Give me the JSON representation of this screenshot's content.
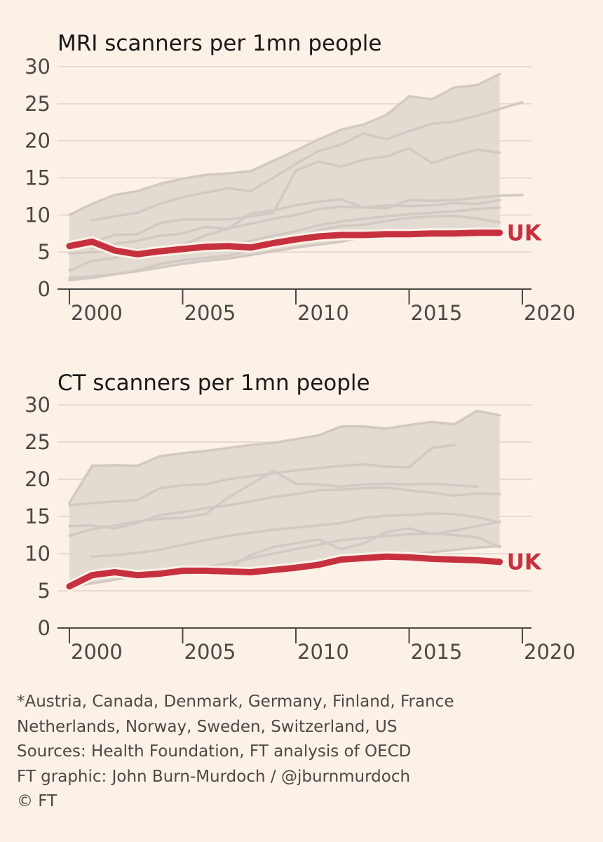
{
  "chart_data": [
    {
      "type": "line",
      "title": "MRI scanners per 1mn people",
      "xlabel": "",
      "ylabel": "",
      "xlim": [
        1999,
        2021
      ],
      "ylim": [
        0,
        30
      ],
      "yticks": [
        0,
        5,
        10,
        15,
        20,
        25,
        30
      ],
      "xticks": [
        2000,
        2005,
        2010,
        2015,
        2020
      ],
      "x": [
        2000,
        2001,
        2002,
        2003,
        2004,
        2005,
        2006,
        2007,
        2008,
        2009,
        2010,
        2011,
        2012,
        2013,
        2014,
        2015,
        2016,
        2017,
        2018,
        2019
      ],
      "peer_range_max": [
        10,
        11.5,
        12.7,
        13.2,
        14.2,
        14.9,
        15.4,
        15.6,
        15.9,
        17.3,
        18.7,
        20.2,
        21.5,
        22.2,
        23.5,
        26,
        25.6,
        27.2,
        27.5,
        29
      ],
      "peer_range_min": [
        1.2,
        1.5,
        2,
        2.4,
        2.9,
        3.4,
        3.8,
        4.1,
        4.6,
        5.1,
        5.6,
        6,
        6.4,
        7,
        7.3,
        7.5,
        7.8,
        8,
        8.1,
        8.2
      ],
      "peer_series": [
        {
          "start": 2001,
          "values": [
            9.3,
            9.8,
            10.3,
            11.5,
            12.4,
            13,
            13.6,
            13.2,
            15,
            16.9,
            18.6,
            19.5,
            21,
            20.2,
            21.3,
            22.3,
            22.6,
            23.4,
            24.3,
            25.2
          ]
        },
        {
          "start": 2000,
          "values": [
            5.3,
            6.3,
            7.3,
            7.4,
            8.9,
            9.4,
            9.4,
            9.4,
            9.8,
            10.3,
            16,
            17.2,
            16.5,
            17.5,
            17.9,
            19,
            17,
            18,
            18.8,
            18.4
          ]
        },
        {
          "start": 2001,
          "values": [
            5.5,
            6.1,
            6.5,
            7.2,
            7.5,
            8.4,
            8.1,
            10.2,
            10.6,
            11.3,
            11.8,
            12.1,
            11,
            10.9,
            12,
            11.9,
            12,
            12.3,
            12.6,
            12.7
          ]
        },
        {
          "start": 2000,
          "values": [
            2.5,
            3.8,
            4.2,
            5,
            5.5,
            6,
            7.2,
            8.2,
            8.8,
            9.5,
            10,
            10.8,
            11.1,
            11,
            11.3,
            11.2,
            11.3,
            11.6,
            11.5,
            12
          ]
        },
        {
          "start": 2000,
          "values": [
            1.5,
            1.7,
            2,
            2.5,
            3.4,
            3.9,
            4.2,
            4.5,
            5.2,
            6,
            6.9,
            8,
            8.5,
            8.7,
            9.2,
            9.6,
            9.8,
            9.9,
            9.5,
            9
          ]
        },
        {
          "start": 2000,
          "values": [
            4.8,
            5,
            5.2,
            5.4,
            5.5,
            5.6,
            5.8,
            6,
            6.5,
            7.2,
            7.8,
            8.6,
            9.1,
            9.5,
            9.8,
            10.1,
            10.3,
            10.5,
            10.8,
            11
          ]
        }
      ],
      "series": [
        {
          "name": "UK",
          "color": "#c7313f",
          "values": [
            5.8,
            6.4,
            5.2,
            4.7,
            5.1,
            5.4,
            5.7,
            5.8,
            5.6,
            6.2,
            6.7,
            7.1,
            7.3,
            7.3,
            7.4,
            7.4,
            7.5,
            7.5,
            7.6,
            7.6
          ]
        }
      ],
      "label": "UK"
    },
    {
      "type": "line",
      "title": "CT scanners per 1mn people",
      "xlabel": "",
      "ylabel": "",
      "xlim": [
        1999,
        2021
      ],
      "ylim": [
        0,
        30
      ],
      "yticks": [
        0,
        5,
        10,
        15,
        20,
        25,
        30
      ],
      "xticks": [
        2000,
        2005,
        2010,
        2015,
        2020
      ],
      "x": [
        2000,
        2001,
        2002,
        2003,
        2004,
        2005,
        2006,
        2007,
        2008,
        2009,
        2010,
        2011,
        2012,
        2013,
        2014,
        2015,
        2016,
        2017,
        2018,
        2019
      ],
      "peer_range_max": [
        16.8,
        21.8,
        21.9,
        21.8,
        23.1,
        23.5,
        23.8,
        24.2,
        24.6,
        24.9,
        25.4,
        25.9,
        27.1,
        27.1,
        26.8,
        27.3,
        27.7,
        27.4,
        29.2,
        28.6
      ],
      "peer_range_min": [
        5.5,
        6,
        6.5,
        7,
        7.2,
        7.5,
        7.7,
        7.9,
        8,
        8.2,
        8.5,
        8.8,
        9,
        9.3,
        9.6,
        9.9,
        10.2,
        10.5,
        10.8,
        11
      ],
      "peer_series": [
        {
          "start": 2000,
          "values": [
            16.5,
            16.8,
            17,
            17.2,
            18.8,
            19.2,
            19.3,
            20,
            20.4,
            20.8,
            21.2,
            21.5,
            21.8,
            22,
            21.7,
            21.6,
            24.2,
            24.6
          ]
        },
        {
          "start": 2000,
          "values": [
            12.4,
            13.3,
            13.8,
            14.3,
            14.7,
            14.8,
            15.3,
            17.5,
            19.3,
            21.1,
            19.4,
            19.3,
            19,
            19.3,
            19.4,
            19.3,
            19.4,
            19.2,
            19
          ]
        },
        {
          "start": 2000,
          "values": [
            13.7,
            13.8,
            13.4,
            14.1,
            15.2,
            15.6,
            16.1,
            16.5,
            17,
            17.6,
            18,
            18.5,
            18.6,
            18.8,
            18.9,
            18.5,
            18.2,
            17.8,
            18.1,
            18
          ]
        },
        {
          "start": 2001,
          "values": [
            9.6,
            9.8,
            10.1,
            10.5,
            11.2,
            11.8,
            12.4,
            12.8,
            13.2,
            13.5,
            13.8,
            14.1,
            14.8,
            15.1,
            15.2,
            15.4,
            15.3,
            14.9,
            14.2
          ]
        },
        {
          "start": 2001,
          "values": [
            6.8,
            7.2,
            7.5,
            7.8,
            8.2,
            8.1,
            8,
            9.8,
            10.9,
            11.4,
            11.9,
            10.6,
            11.4,
            12.9,
            13.4,
            12.6,
            13.1,
            13.7,
            14.3
          ]
        },
        {
          "start": 2005,
          "values": [
            7.8,
            8.2,
            8.7,
            9.4,
            10,
            10.6,
            11.2,
            11.8,
            12.1,
            12.4,
            12.6,
            12.7,
            12.5,
            12.2,
            10.9
          ]
        }
      ],
      "series": [
        {
          "name": "UK",
          "color": "#c7313f",
          "values": [
            5.6,
            7.1,
            7.5,
            7.1,
            7.3,
            7.7,
            7.7,
            7.6,
            7.5,
            7.8,
            8.1,
            8.5,
            9.2,
            9.4,
            9.6,
            9.5,
            9.3,
            9.2,
            9.1,
            8.9
          ]
        }
      ],
      "label": "UK"
    }
  ],
  "footnotes": {
    "line1": "*Austria, Canada, Denmark, Germany, Finland, France",
    "line2": "Netherlands, Norway, Sweden, Switzerland, US",
    "line3": "Sources: Health Foundation, FT analysis of OECD",
    "line4": "FT graphic: John Burn-Murdoch / @jburnmurdoch",
    "line5": "© FT"
  }
}
